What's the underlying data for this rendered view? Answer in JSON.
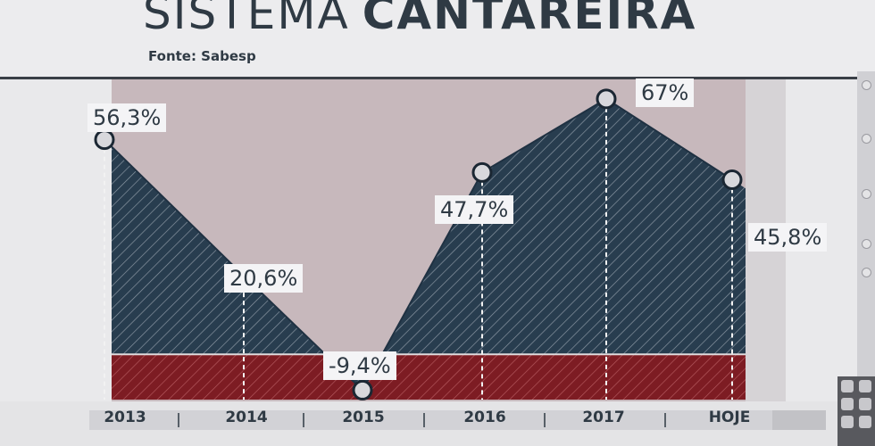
{
  "header": {
    "title_light": "SISTEMA",
    "title_bold": "CANTAREIRA",
    "source": "Fonte: Sabesp"
  },
  "colors": {
    "area": "#283d4f",
    "negative_band": "#7d1c23",
    "plot_bg": "#c7b8bc",
    "marker_fill": "#d8d8dc"
  },
  "chart_data": {
    "type": "area",
    "title": "SISTEMA CANTAREIRA",
    "xlabel": "",
    "ylabel": "",
    "categories": [
      "2013",
      "2014",
      "2015",
      "2016",
      "2017",
      "HOJE"
    ],
    "values": [
      56.3,
      20.6,
      -9.4,
      47.7,
      67,
      45.8
    ],
    "value_labels": [
      "56,3%",
      "20,6%",
      "-9,4%",
      "47,7%",
      "67%",
      "45,8%"
    ],
    "ylim": [
      -10,
      70
    ],
    "grid": false,
    "legend": "none"
  }
}
